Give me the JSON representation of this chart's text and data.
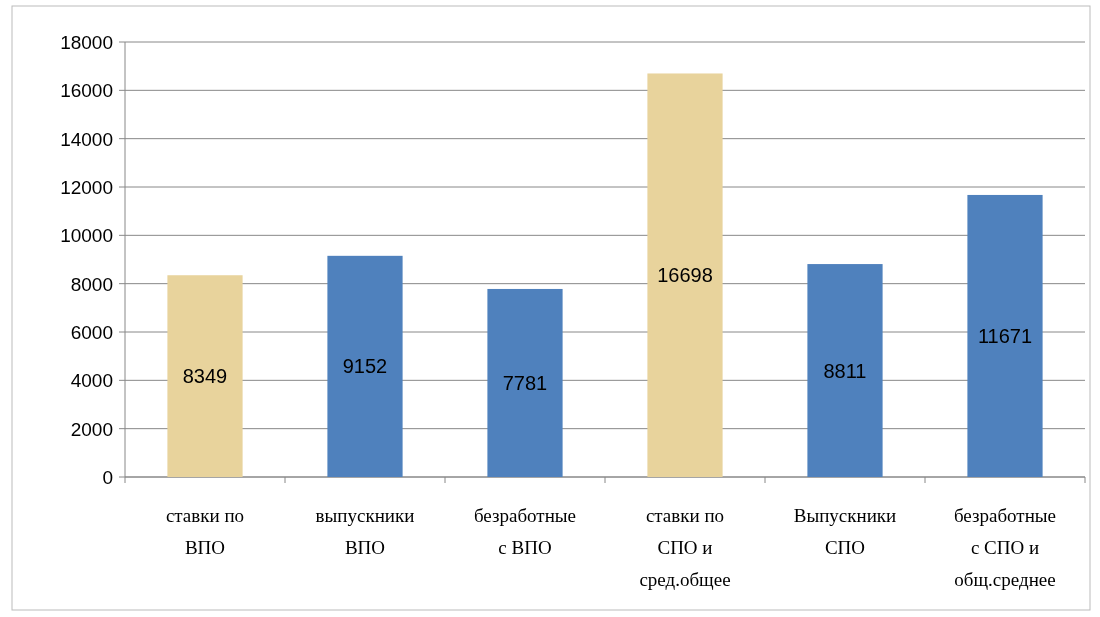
{
  "chart_data": {
    "type": "bar",
    "categories": [
      "ставки по ВПО",
      "выпускники ВПО",
      "безработные с ВПО",
      "ставки по СПО и сред.общее",
      "Выпускники СПО",
      "безработные с СПО и общ.среднее"
    ],
    "values": [
      8349,
      9152,
      7781,
      16698,
      8811,
      11671
    ],
    "colors": [
      "#e8d39c",
      "#4f81bd",
      "#4f81bd",
      "#e8d39c",
      "#4f81bd",
      "#4f81bd"
    ],
    "ylim": [
      0,
      18000
    ],
    "yticks": [
      0,
      2000,
      4000,
      6000,
      8000,
      10000,
      12000,
      14000,
      16000,
      18000
    ],
    "grid": "y",
    "data_labels": true
  }
}
